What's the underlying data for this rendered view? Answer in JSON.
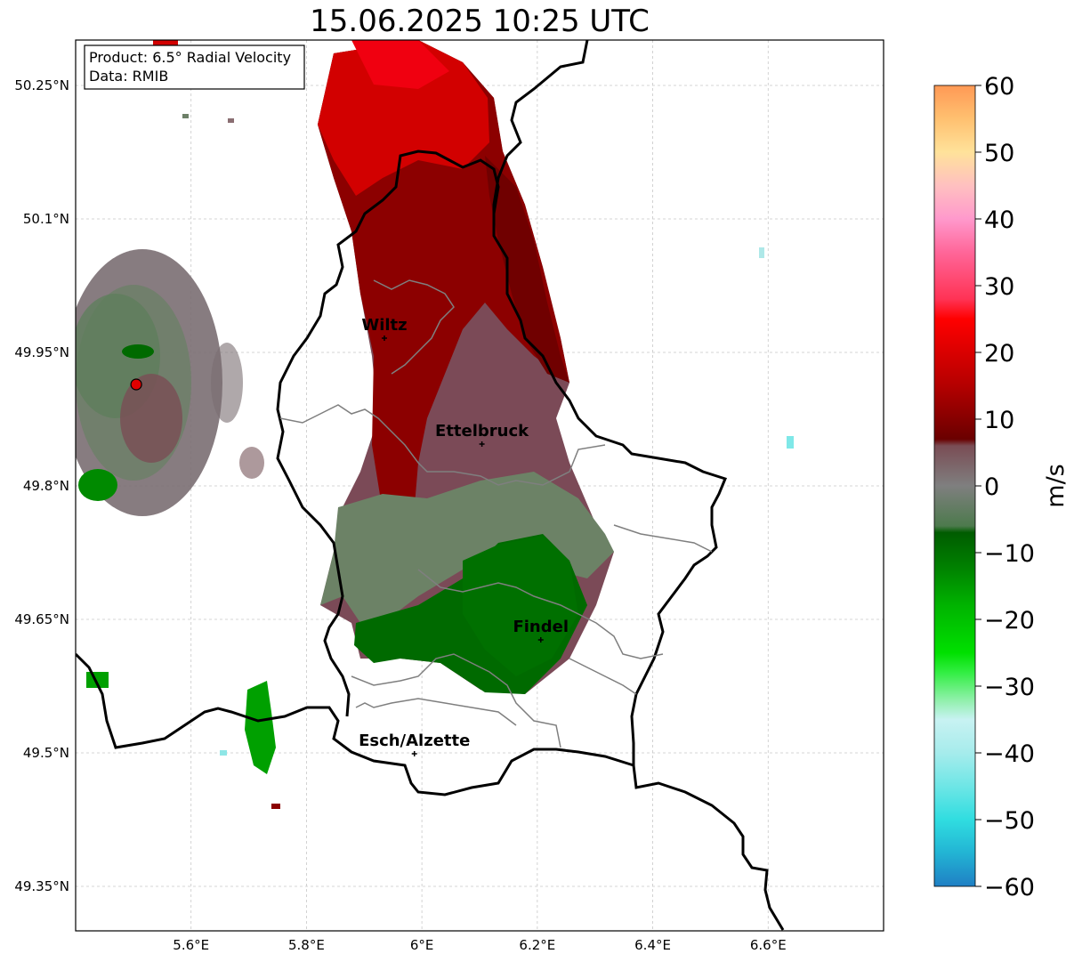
{
  "title": "15.06.2025 10:25 UTC",
  "info_box": {
    "product": "Product: 6.5° Radial Velocity",
    "data": "Data: RMIB"
  },
  "latitudes": [
    {
      "value": 50.25,
      "label": "50.25°N"
    },
    {
      "value": 50.1,
      "label": "50.1°N"
    },
    {
      "value": 49.95,
      "label": "49.95°N"
    },
    {
      "value": 49.8,
      "label": "49.8°N"
    },
    {
      "value": 49.65,
      "label": "49.65°N"
    },
    {
      "value": 49.5,
      "label": "49.5°N"
    },
    {
      "value": 49.35,
      "label": "49.35°N"
    }
  ],
  "longitudes": [
    {
      "value": 5.6,
      "label": "5.6°E"
    },
    {
      "value": 5.8,
      "label": "5.8°E"
    },
    {
      "value": 6.0,
      "label": "6°E"
    },
    {
      "value": 6.2,
      "label": "6.2°E"
    },
    {
      "value": 6.4,
      "label": "6.4°E"
    },
    {
      "value": 6.6,
      "label": "6.6°E"
    }
  ],
  "cities": [
    {
      "name": "Wiltz",
      "lon": 5.935,
      "lat": 49.966
    },
    {
      "name": "Ettelbruck",
      "lon": 6.104,
      "lat": 49.847
    },
    {
      "name": "Findel",
      "lon": 6.206,
      "lat": 49.627
    },
    {
      "name": "Esch/Alzette",
      "lon": 5.987,
      "lat": 49.499
    }
  ],
  "radar_site": {
    "lon": 5.505,
    "lat": 49.914,
    "color": "#e00000"
  },
  "colorbar": {
    "unit": "m/s",
    "min": -60,
    "max": 60,
    "ticks": [
      "−60",
      "−50",
      "−40",
      "−30",
      "−20",
      "−10",
      "0",
      "10",
      "20",
      "30",
      "40",
      "50",
      "60"
    ],
    "stops": [
      {
        "v": -60,
        "color": "#1f7fc4"
      },
      {
        "v": -55,
        "color": "#22b4d4"
      },
      {
        "v": -50,
        "color": "#30dde0"
      },
      {
        "v": -45,
        "color": "#6ee6e6"
      },
      {
        "v": -40,
        "color": "#a6ecec"
      },
      {
        "v": -35,
        "color": "#c8f2f2"
      },
      {
        "v": -32,
        "color": "#8ef0a8"
      },
      {
        "v": -28,
        "color": "#33ee44"
      },
      {
        "v": -25,
        "color": "#00e000"
      },
      {
        "v": -18,
        "color": "#00b400"
      },
      {
        "v": -12,
        "color": "#007f00"
      },
      {
        "v": -7,
        "color": "#005c00"
      },
      {
        "v": -6,
        "color": "#4d7a4d"
      },
      {
        "v": 0,
        "color": "#7f7f7f"
      },
      {
        "v": 6,
        "color": "#7a4d55"
      },
      {
        "v": 7,
        "color": "#6a0000"
      },
      {
        "v": 15,
        "color": "#b40000"
      },
      {
        "v": 25,
        "color": "#ff0000"
      },
      {
        "v": 28,
        "color": "#ff3355"
      },
      {
        "v": 35,
        "color": "#ff6699"
      },
      {
        "v": 40,
        "color": "#ff99cc"
      },
      {
        "v": 45,
        "color": "#ffc0c0"
      },
      {
        "v": 50,
        "color": "#ffe29a"
      },
      {
        "v": 55,
        "color": "#ffc070"
      },
      {
        "v": 60,
        "color": "#ff9955"
      }
    ]
  }
}
